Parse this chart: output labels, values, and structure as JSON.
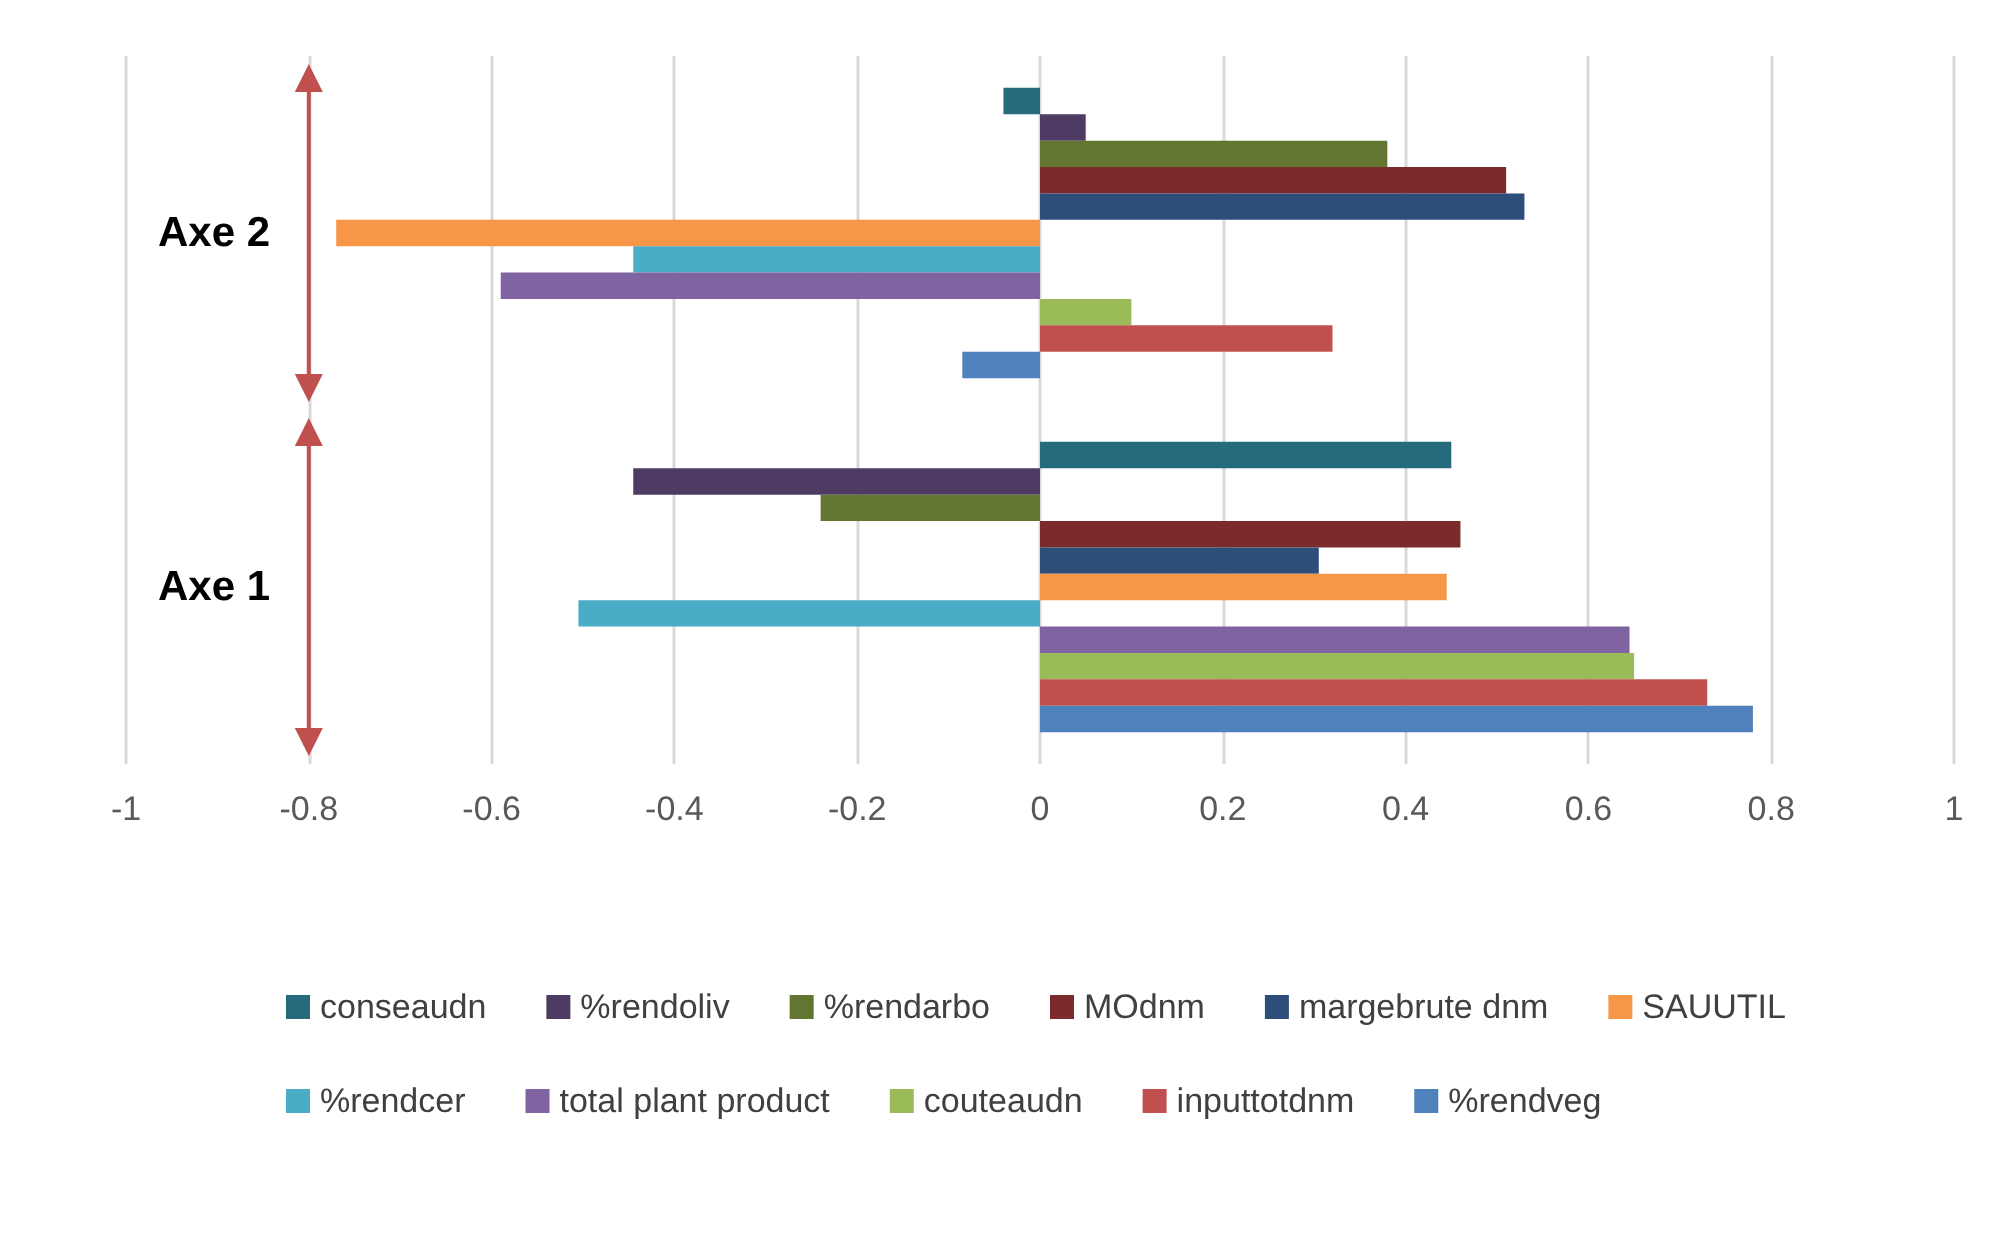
{
  "chart_data": {
    "type": "bar",
    "orientation": "horizontal",
    "categories": [
      "Axe 2",
      "Axe 1"
    ],
    "series": [
      {
        "name": "conseaudn",
        "color": "#266b7c",
        "values": [
          -0.04,
          0.45
        ]
      },
      {
        "name": "%rendoliv",
        "color": "#4e3b63",
        "values": [
          0.05,
          -0.445
        ]
      },
      {
        "name": "%rendarbo",
        "color": "#627531",
        "values": [
          0.38,
          -0.24
        ]
      },
      {
        "name": "MOdnm",
        "color": "#7b2b2b",
        "values": [
          0.51,
          0.46
        ]
      },
      {
        "name": "margebrute dnm",
        "color": "#2d4e78",
        "values": [
          0.53,
          0.305
        ]
      },
      {
        "name": "SAUUTIL",
        "color": "#f79646",
        "values": [
          -0.77,
          0.445
        ]
      },
      {
        "name": "%rendcer",
        "color": "#4bacc6",
        "values": [
          -0.445,
          -0.505
        ]
      },
      {
        "name": "total plant product",
        "color": "#8064a2",
        "values": [
          -0.59,
          0.645
        ]
      },
      {
        "name": "couteaudn",
        "color": "#9bbb59",
        "values": [
          0.1,
          0.65
        ]
      },
      {
        "name": "inputtotdnm",
        "color": "#c0504d",
        "values": [
          0.32,
          0.73
        ]
      },
      {
        "name": "%rendveg",
        "color": "#4f81bd",
        "values": [
          -0.085,
          0.78
        ]
      }
    ],
    "xlim": [
      -1,
      1
    ],
    "xticks": [
      -1,
      -0.8,
      -0.6,
      -0.4,
      -0.2,
      0,
      0.2,
      0.4,
      0.6,
      0.8,
      1
    ],
    "grid": "x",
    "legend": "bottom"
  }
}
